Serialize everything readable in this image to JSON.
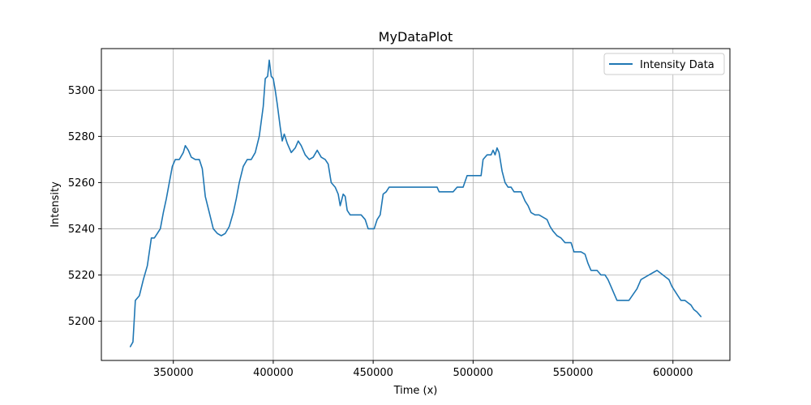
{
  "chart_data": {
    "type": "line",
    "title": "MyDataPlot",
    "xlabel": "Time (x)",
    "ylabel": "Intensity",
    "xlim": [
      314000,
      628500
    ],
    "ylim": [
      5183,
      5318
    ],
    "xticks": [
      350000,
      400000,
      450000,
      500000,
      550000,
      600000
    ],
    "xtick_labels": [
      "350000",
      "400000",
      "450000",
      "500000",
      "550000",
      "600000"
    ],
    "yticks": [
      5200,
      5220,
      5240,
      5260,
      5280,
      5300
    ],
    "ytick_labels": [
      "5200",
      "5220",
      "5240",
      "5260",
      "5280",
      "5300"
    ],
    "grid": true,
    "legend_position": "top-right",
    "line_color": "#1f77b4",
    "series": [
      {
        "name": "Intensity Data",
        "x": [
          328500,
          329800,
          331000,
          333000,
          335000,
          337000,
          339000,
          340500,
          342000,
          343500,
          345000,
          346500,
          348000,
          349500,
          351000,
          353000,
          355000,
          356000,
          357500,
          359000,
          361000,
          363000,
          364500,
          366000,
          368000,
          370000,
          372000,
          374000,
          376000,
          378000,
          380000,
          381500,
          383000,
          385000,
          387000,
          389000,
          391000,
          393000,
          395000,
          396000,
          397200,
          398000,
          399000,
          400000,
          401000,
          402000,
          403500,
          404500,
          405500,
          407000,
          409000,
          411000,
          412500,
          414000,
          416000,
          418000,
          420000,
          422000,
          424000,
          426000,
          427500,
          429000,
          431000,
          432500,
          433500,
          435000,
          436000,
          437000,
          438500,
          440000,
          442000,
          444000,
          446000,
          447500,
          449000,
          450500,
          452000,
          453500,
          455000,
          456500,
          458000,
          460000,
          465000,
          470000,
          475000,
          480000,
          482000,
          483000,
          488000,
          490000,
          492000,
          494000,
          495000,
          497000,
          502000,
          504000,
          505000,
          507000,
          509000,
          510000,
          511000,
          512000,
          513000,
          514500,
          516000,
          517500,
          519000,
          520500,
          522000,
          524000,
          526000,
          527500,
          529000,
          531000,
          533000,
          535000,
          537000,
          538500,
          540000,
          542000,
          544000,
          546000,
          547500,
          549000,
          550500,
          552000,
          554000,
          556000,
          557500,
          559000,
          560500,
          562000,
          564000,
          566000,
          567500,
          569000,
          570500,
          572000,
          573500,
          575000,
          578000,
          582000,
          584000,
          586000,
          588000,
          590000,
          592000,
          593500,
          595000,
          596500,
          598000,
          599500,
          601000,
          602500,
          604000,
          606000,
          607500,
          609000,
          610500,
          612000,
          614000
        ],
        "y": [
          5189,
          5191,
          5209,
          5211,
          5218,
          5224,
          5236,
          5236,
          5238,
          5240,
          5247,
          5253,
          5260,
          5267,
          5270,
          5270,
          5273,
          5276,
          5274,
          5271,
          5270,
          5270,
          5266,
          5254,
          5247,
          5240,
          5238,
          5237,
          5238,
          5241,
          5247,
          5253,
          5260,
          5267,
          5270,
          5270,
          5273,
          5280,
          5293,
          5305,
          5306,
          5313,
          5306,
          5305,
          5300,
          5294,
          5284,
          5278,
          5281,
          5277,
          5273,
          5275,
          5278,
          5276,
          5272,
          5270,
          5271,
          5274,
          5271,
          5270,
          5268,
          5260,
          5258,
          5255,
          5250,
          5255,
          5254,
          5248,
          5246,
          5246,
          5246,
          5246,
          5244,
          5240,
          5240,
          5240,
          5244,
          5246,
          5255,
          5256,
          5258,
          5258,
          5258,
          5258,
          5258,
          5258,
          5258,
          5256,
          5256,
          5256,
          5258,
          5258,
          5258,
          5263,
          5263,
          5263,
          5270,
          5272,
          5272,
          5274,
          5272,
          5275,
          5273,
          5265,
          5260,
          5258,
          5258,
          5256,
          5256,
          5256,
          5252,
          5250,
          5247,
          5246,
          5246,
          5245,
          5244,
          5241,
          5239,
          5237,
          5236,
          5234,
          5234,
          5234,
          5230,
          5230,
          5230,
          5229,
          5225,
          5222,
          5222,
          5222,
          5220,
          5220,
          5218,
          5215,
          5212,
          5209,
          5209,
          5209,
          5209,
          5214,
          5218,
          5219,
          5220,
          5221,
          5222,
          5221,
          5220,
          5219,
          5218,
          5215,
          5213,
          5211,
          5209,
          5209,
          5208,
          5207,
          5205,
          5204,
          5202
        ]
      }
    ]
  }
}
